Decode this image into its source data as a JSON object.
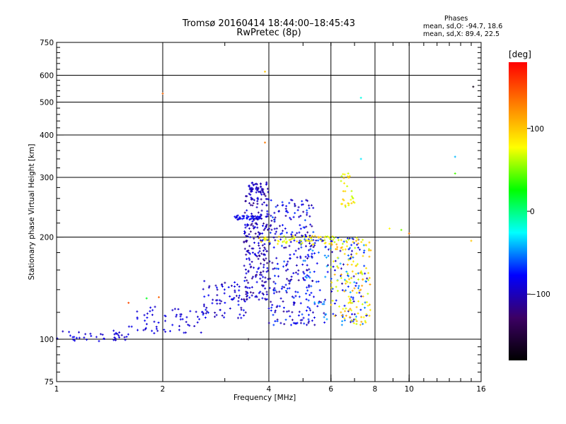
{
  "title": "Tromsø 20160414 18:44:00–18:45:43",
  "subtitle": "RwPretec (8p)",
  "phases": {
    "label": "Phases",
    "o_line": "mean, sd,O: -94.7, 18.6",
    "x_line": "mean, sd,X:  89.4, 22.5"
  },
  "colorbar": {
    "unit_label": "[deg]",
    "range": [
      -180,
      180
    ],
    "tick_values": [
      100,
      0,
      -100
    ],
    "tick_labels": [
      "100",
      "0",
      "−100"
    ],
    "colors": [
      "#000000",
      "#3c0064",
      "#0000ff",
      "#00ffff",
      "#00ff00",
      "#ffff00",
      "#ff8000",
      "#ff0000"
    ]
  },
  "chart_data": {
    "type": "scatter",
    "title": "Tromsø 20160414 18:44:00–18:45:43",
    "subtitle": "RwPretec (8p)",
    "xlabel": "Frequency [MHz]",
    "ylabel": "Stationary phase Virtual Height [km]",
    "x_scale": "log",
    "y_scale": "log",
    "xlim": [
      1,
      16
    ],
    "ylim": [
      75,
      750
    ],
    "x_ticks": [
      1,
      2,
      4,
      6,
      8,
      10,
      16
    ],
    "x_tick_labels": [
      "1",
      "2",
      "4",
      "6",
      "8",
      "10",
      "16"
    ],
    "y_ticks": [
      75,
      100,
      200,
      300,
      400,
      500,
      600,
      750
    ],
    "y_tick_labels": [
      "75",
      "100",
      "200",
      "300",
      "400",
      "500",
      "600",
      "750"
    ],
    "x_gridlines": [
      2,
      4,
      6,
      8,
      10
    ],
    "y_gridlines": [
      100,
      200,
      300,
      400,
      500,
      600
    ],
    "grid": true,
    "color_by": "phase (deg)",
    "regions": [
      {
        "f": [
          1.0,
          1.6
        ],
        "h": [
          98,
          106
        ],
        "phase": [
          -100,
          -80
        ],
        "n": 40
      },
      {
        "f": [
          1.6,
          2.6
        ],
        "h": [
          104,
          125
        ],
        "phase": [
          -100,
          -80
        ],
        "n": 60
      },
      {
        "f": [
          2.6,
          3.5
        ],
        "h": [
          115,
          150
        ],
        "phase": [
          -110,
          -70
        ],
        "n": 80
      },
      {
        "f": [
          3.4,
          4.0
        ],
        "h": [
          130,
          280
        ],
        "phase": [
          -120,
          -80
        ],
        "n": 230
      },
      {
        "f": [
          4.0,
          5.4
        ],
        "h": [
          110,
          260
        ],
        "phase": [
          -115,
          -60
        ],
        "n": 260
      },
      {
        "f": [
          5.0,
          7.6
        ],
        "h": [
          110,
          200
        ],
        "phase": [
          -110,
          -40
        ],
        "n": 160
      },
      {
        "f": [
          3.7,
          6.2
        ],
        "h": [
          190,
          202
        ],
        "phase": [
          60,
          100
        ],
        "n": 60
      },
      {
        "f": [
          6.0,
          7.8
        ],
        "h": [
          110,
          200
        ],
        "phase": [
          60,
          120
        ],
        "n": 130
      },
      {
        "f": [
          6.4,
          7.0
        ],
        "h": [
          240,
          310
        ],
        "phase": [
          60,
          100
        ],
        "n": 30
      },
      {
        "f": [
          3.5,
          4.0
        ],
        "h": [
          270,
          290
        ],
        "phase": [
          -110,
          -90
        ],
        "n": 40
      },
      {
        "f": [
          3.2,
          3.8
        ],
        "h": [
          225,
          232
        ],
        "phase": [
          -100,
          -70
        ],
        "n": 40
      }
    ],
    "outliers": [
      {
        "x": 2.0,
        "y": 530,
        "phase": 140
      },
      {
        "x": 3.9,
        "y": 615,
        "phase": 100
      },
      {
        "x": 3.9,
        "y": 380,
        "phase": 130
      },
      {
        "x": 7.3,
        "y": 515,
        "phase": -20
      },
      {
        "x": 7.3,
        "y": 340,
        "phase": -30
      },
      {
        "x": 15.2,
        "y": 555,
        "phase": -170
      },
      {
        "x": 13.5,
        "y": 345,
        "phase": -40
      },
      {
        "x": 13.5,
        "y": 308,
        "phase": 40
      },
      {
        "x": 15.0,
        "y": 195,
        "phase": 100
      },
      {
        "x": 8.0,
        "y": 300,
        "phase": -160
      },
      {
        "x": 10.0,
        "y": 205,
        "phase": 130
      },
      {
        "x": 8.8,
        "y": 212,
        "phase": 80
      },
      {
        "x": 9.5,
        "y": 210,
        "phase": 50
      },
      {
        "x": 1.6,
        "y": 128,
        "phase": 150
      },
      {
        "x": 1.8,
        "y": 132,
        "phase": 20
      },
      {
        "x": 3.5,
        "y": 100,
        "phase": -170
      },
      {
        "x": 1.95,
        "y": 133,
        "phase": 140
      }
    ]
  }
}
